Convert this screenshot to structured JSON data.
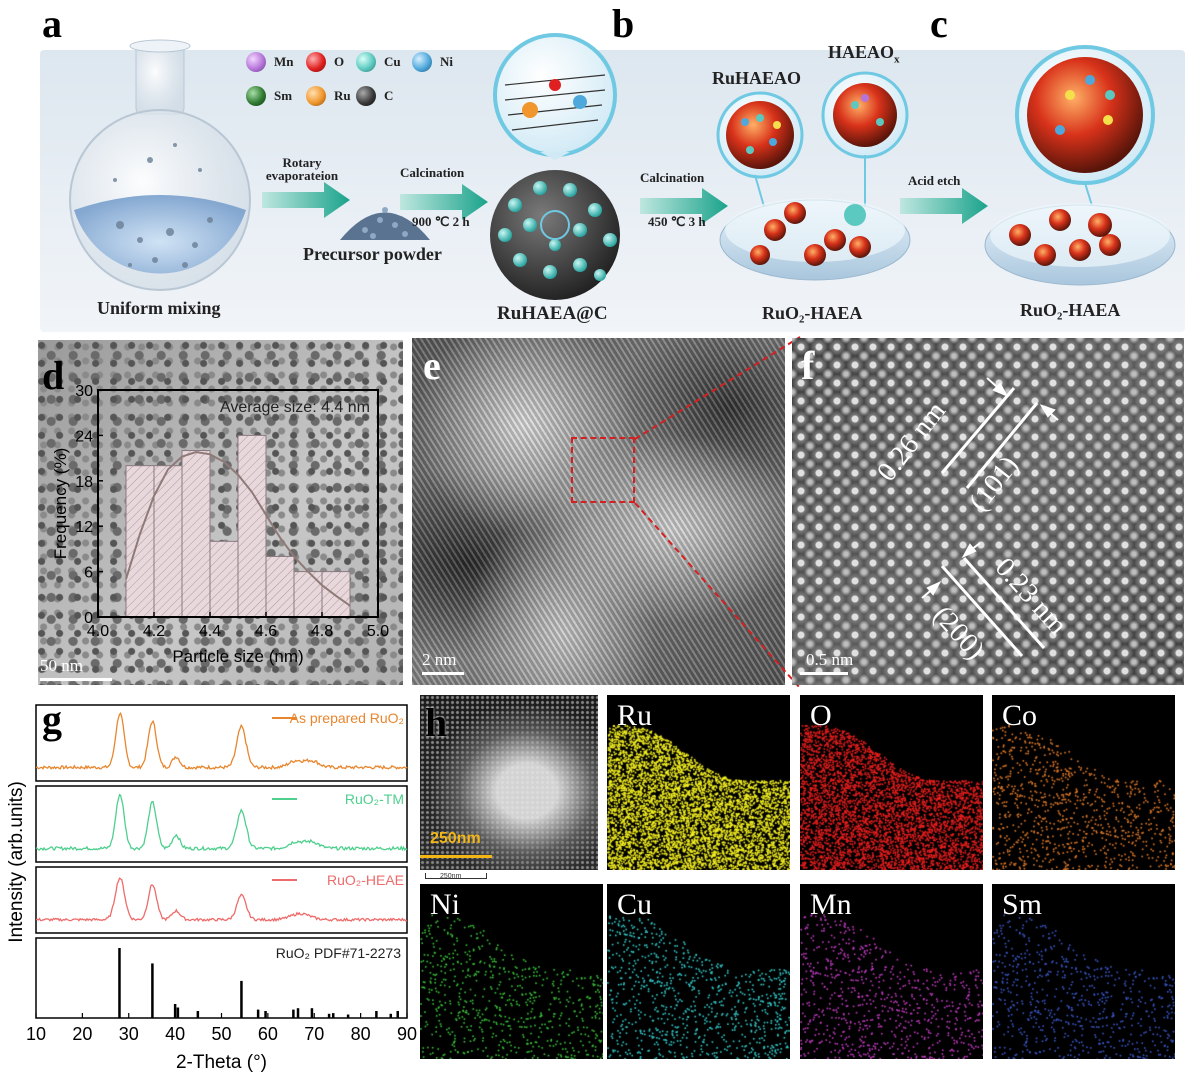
{
  "panels": {
    "a": "a",
    "b": "b",
    "c": "c",
    "d": "d",
    "e": "e",
    "f": "f",
    "g": "g",
    "h": "h"
  },
  "schematic": {
    "legend": [
      {
        "symbol": "Mn",
        "color": "#b575d8"
      },
      {
        "symbol": "O",
        "color": "#e02020"
      },
      {
        "symbol": "Cu",
        "color": "#5cc9c0"
      },
      {
        "symbol": "Ni",
        "color": "#4fa8dc"
      },
      {
        "symbol": "Sm",
        "color": "#2f7a32"
      },
      {
        "symbol": "Ru",
        "color": "#f0962c"
      },
      {
        "symbol": "C",
        "color": "#3a3a3a"
      }
    ],
    "uniform_mixing": "Uniform mixing",
    "rotary": "Rotary evaporateion",
    "precursor": "Precursor powder",
    "calcination1": "Calcination",
    "calc1_cond": "900 ℃ 2 h",
    "ruhaea_c": "RuHAEA@C",
    "calcination2": "Calcination",
    "calc2_cond": "450 ℃ 3 h",
    "ruhaeao": "RuHAEAO",
    "haeaox": "HAEAO",
    "haeaox_sub": "x",
    "ruo2_haea_b": "RuO₂-HAEA",
    "acid_etch": "Acid etch",
    "ruo2_haea_c": "RuO₂-HAEA"
  },
  "tem_d": {
    "scale": "50 nm"
  },
  "tem_e": {
    "scale": "2 nm"
  },
  "hrtem_f": {
    "scale": "0.5 nm",
    "d1": "0.26 nm",
    "plane1": "(101)",
    "d2": "0.23 nm",
    "plane2": "(200)"
  },
  "chart_data": [
    {
      "type": "bar",
      "title": "",
      "annotation": "Average size: 4.4 nm",
      "xlabel": "Particle size (nm)",
      "ylabel": "Frequency (%)",
      "xlim": [
        4.0,
        5.0
      ],
      "ylim": [
        0,
        30
      ],
      "xticks": [
        "4.0",
        "4.2",
        "4.4",
        "4.6",
        "4.8",
        "5.0"
      ],
      "yticks": [
        "0",
        "6",
        "12",
        "18",
        "24",
        "30"
      ],
      "bins": [
        [
          4.1,
          4.2
        ],
        [
          4.2,
          4.3
        ],
        [
          4.3,
          4.4
        ],
        [
          4.4,
          4.5
        ],
        [
          4.5,
          4.6
        ],
        [
          4.6,
          4.7
        ],
        [
          4.7,
          4.8
        ],
        [
          4.8,
          4.9
        ]
      ],
      "values": [
        20,
        20,
        22,
        10,
        24,
        8,
        6,
        6
      ],
      "fit_curve": {
        "x": [
          4.1,
          4.15,
          4.2,
          4.25,
          4.3,
          4.35,
          4.4,
          4.45,
          4.5,
          4.55,
          4.6,
          4.65,
          4.7,
          4.75,
          4.8,
          4.85,
          4.9
        ],
        "y": [
          5,
          11,
          16,
          19.5,
          21.2,
          21.8,
          21.5,
          20.5,
          18.8,
          16.5,
          13.5,
          10.5,
          8,
          6,
          4.2,
          2.8,
          1.5
        ]
      }
    },
    {
      "type": "line",
      "title": "",
      "xlabel": "2-Theta (°)",
      "ylabel": "Intensity (arb.units)",
      "xlim": [
        10,
        90
      ],
      "xticks": [
        "10",
        "20",
        "30",
        "40",
        "50",
        "60",
        "70",
        "80",
        "90"
      ],
      "series": [
        {
          "name": "As prepared RuO₂",
          "color": "#e8862e",
          "peaks": [
            [
              28.1,
              1.0,
              0.9
            ],
            [
              35.1,
              0.85,
              0.9
            ],
            [
              40.2,
              0.2,
              0.8
            ],
            [
              54.3,
              0.75,
              1.0
            ],
            [
              66,
              0.12,
              1.5
            ],
            [
              69.5,
              0.12,
              1.5
            ]
          ]
        },
        {
          "name": "RuO₂-TM",
          "color": "#4fcf8e",
          "peaks": [
            [
              28.1,
              1.0,
              0.9
            ],
            [
              35.1,
              0.85,
              0.9
            ],
            [
              40.2,
              0.25,
              0.8
            ],
            [
              54.3,
              0.7,
              1.0
            ],
            [
              66,
              0.12,
              1.5
            ],
            [
              69.5,
              0.12,
              1.5
            ]
          ]
        },
        {
          "name": "RuO₂-HEAE",
          "color": "#ee6b6b",
          "peaks": [
            [
              28.1,
              0.95,
              1.0
            ],
            [
              35.1,
              0.8,
              0.9
            ],
            [
              40.2,
              0.2,
              0.9
            ],
            [
              54.3,
              0.55,
              1.0
            ],
            [
              67,
              0.14,
              2.0
            ]
          ]
        }
      ],
      "reference": {
        "name": "RuO₂ PDF#71-2273",
        "lines": [
          [
            28.0,
            1.0
          ],
          [
            35.1,
            0.78
          ],
          [
            40.0,
            0.2
          ],
          [
            40.6,
            0.15
          ],
          [
            44.9,
            0.1
          ],
          [
            54.3,
            0.53
          ],
          [
            57.9,
            0.12
          ],
          [
            59.5,
            0.1
          ],
          [
            65.5,
            0.12
          ],
          [
            66.5,
            0.14
          ],
          [
            69.5,
            0.14
          ],
          [
            73.2,
            0.06
          ],
          [
            74.1,
            0.07
          ],
          [
            77.3,
            0.05
          ],
          [
            83.4,
            0.1
          ],
          [
            86.5,
            0.06
          ],
          [
            88,
            0.1
          ]
        ]
      }
    }
  ],
  "eds_h": {
    "scale": "250nm",
    "scale_small": "250nm",
    "maps": [
      {
        "label": "Ru",
        "color": "#f4f021",
        "density": 5200
      },
      {
        "label": "O",
        "color": "#e81e1e",
        "density": 4200
      },
      {
        "label": "Co",
        "color": "#e07a2a",
        "density": 900
      },
      {
        "label": "Ni",
        "color": "#3cc43c",
        "density": 650
      },
      {
        "label": "Cu",
        "color": "#35c9c9",
        "density": 850
      },
      {
        "label": "Mn",
        "color": "#c23bc2",
        "density": 750
      },
      {
        "label": "Sm",
        "color": "#3a59c9",
        "density": 650
      }
    ]
  }
}
